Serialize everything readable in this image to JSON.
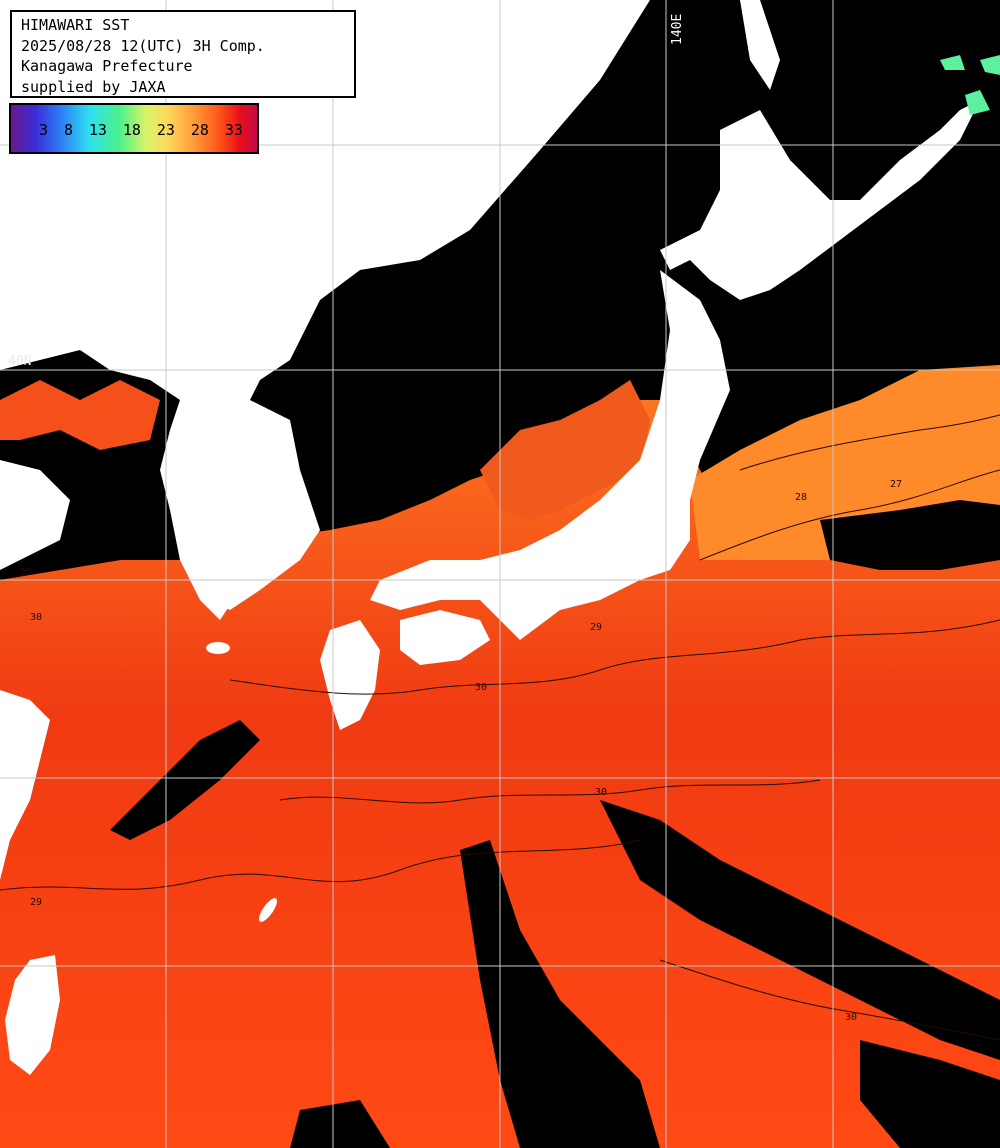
{
  "info": {
    "title": "HIMAWARI SST",
    "datetime": "2025/08/28 12(UTC) 3H Comp.",
    "region": "Kanagawa Prefecture",
    "credit": "supplied by JAXA"
  },
  "legend": {
    "labels": [
      "3",
      "8",
      "13",
      "18",
      "23",
      "28",
      "33"
    ]
  },
  "grid_labels": {
    "longitude": "140E",
    "latitude": "40N"
  },
  "contour_labels": [
    "29",
    "30",
    "28",
    "27"
  ],
  "colors": {
    "land": "#ffffff",
    "cloud_mask": "#000000",
    "sea_warm": "#ff3a10",
    "sea_cool": "#ff8a2a",
    "grid": "#c8c8c8"
  }
}
